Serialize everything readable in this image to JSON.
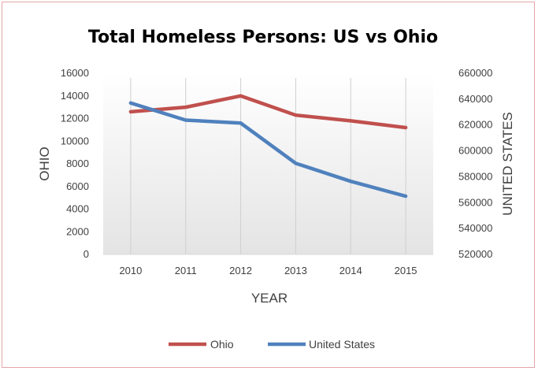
{
  "chart_data": {
    "type": "line",
    "title": "Total Homeless Persons: US vs Ohio",
    "xlabel": "YEAR",
    "ylabel_left": "OHIO",
    "ylabel_right": "UNITED STATES",
    "categories": [
      "2010",
      "2011",
      "2012",
      "2013",
      "2014",
      "2015"
    ],
    "y_left": {
      "min": 0,
      "max": 16000,
      "step": 2000,
      "ticks": [
        "0",
        "2000",
        "4000",
        "6000",
        "8000",
        "10000",
        "12000",
        "14000",
        "16000"
      ]
    },
    "y_right": {
      "min": 520000,
      "max": 660000,
      "step": 20000,
      "ticks": [
        "520000",
        "540000",
        "560000",
        "580000",
        "600000",
        "620000",
        "640000",
        "660000"
      ]
    },
    "series": [
      {
        "name": "Ohio",
        "axis": "left",
        "color": "#c0504d",
        "values": [
          12600,
          13000,
          14000,
          12300,
          11800,
          11200
        ]
      },
      {
        "name": "United States",
        "axis": "right",
        "color": "#4f81bd",
        "values": [
          637000,
          623800,
          621500,
          590400,
          576500,
          565000
        ]
      }
    ],
    "grid": "vertical",
    "legend_position": "bottom"
  }
}
